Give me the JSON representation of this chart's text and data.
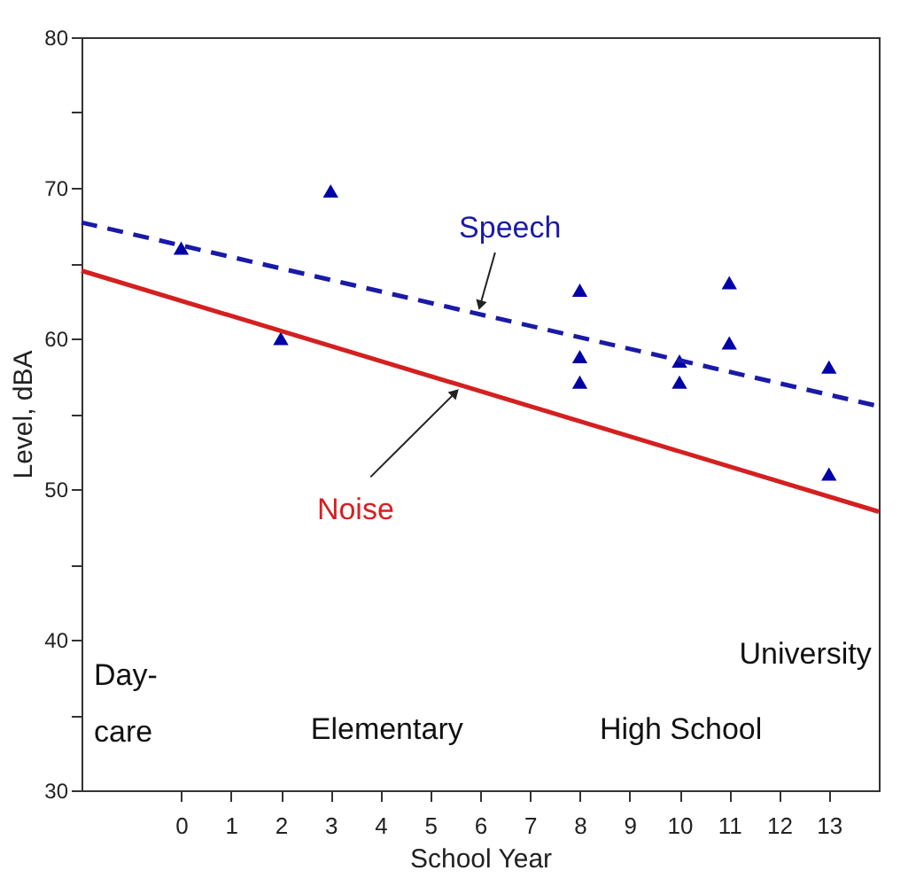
{
  "chart_data": {
    "type": "scatter",
    "xlabel": "School Year",
    "ylabel": "Level, dBA",
    "xlim": [
      -2,
      14
    ],
    "ylim": [
      30,
      80
    ],
    "xticks": [
      0,
      1,
      2,
      3,
      4,
      5,
      6,
      7,
      8,
      9,
      10,
      11,
      12,
      13
    ],
    "yticks": [
      30,
      {
        "value": 35,
        "label": null
      },
      40,
      {
        "value": 45,
        "label": null
      },
      50,
      {
        "value": 55,
        "label": null
      },
      60,
      {
        "value": 65,
        "label": null
      },
      70,
      {
        "value": 75,
        "label": null
      },
      80
    ],
    "grid": false,
    "series": [
      {
        "marker": "triangle",
        "color": "#0000a8",
        "x": [
          0,
          2,
          3,
          8,
          8,
          8,
          10,
          10,
          11,
          11,
          13,
          13
        ],
        "values": [
          66,
          60,
          69.8,
          63.2,
          58.8,
          57.1,
          58.5,
          57.1,
          63.7,
          59.7,
          58.1,
          51
        ]
      },
      {
        "type": "line",
        "name": "Speech",
        "line_style": "dashed",
        "color": "#1a1aa8",
        "x": [
          -2,
          14
        ],
        "values": [
          67.7,
          55.5
        ]
      },
      {
        "type": "line",
        "name": "Noise",
        "line_style": "solid",
        "color": "#d42020",
        "x": [
          -2,
          14
        ],
        "values": [
          64.5,
          48.5
        ]
      }
    ],
    "annotations": [
      "Day-\ncare",
      "Elementary",
      "High School",
      "University"
    ]
  }
}
